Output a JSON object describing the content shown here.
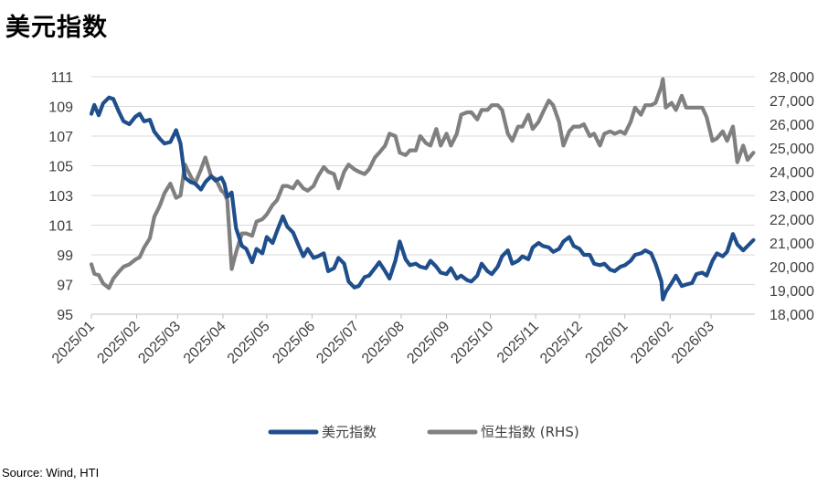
{
  "title": "美元指数",
  "source": "Source: Wind, HTI",
  "chart_data": {
    "type": "line",
    "x_tick_labels": [
      "2025/01",
      "2025/02",
      "2025/03",
      "2025/04",
      "2025/05",
      "2025/06",
      "2025/07",
      "2025/08",
      "2025/09",
      "2025/10",
      "2025/11",
      "2025/12",
      "2026/01",
      "2026/02",
      "2026/03"
    ],
    "left_axis": {
      "ylim": [
        95,
        111
      ],
      "ticks": [
        "111",
        "109",
        "107",
        "105",
        "103",
        "101",
        "99",
        "97",
        "95"
      ]
    },
    "right_axis": {
      "label_suffix": "(RHS)",
      "ylim": [
        18000,
        28000
      ],
      "ticks": [
        "28,000",
        "27,000",
        "26,000",
        "25,000",
        "24,000",
        "23,000",
        "22,000",
        "21,000",
        "20,000",
        "19,000",
        "18,000"
      ]
    },
    "grid": true,
    "legend_position": "bottom",
    "series": [
      {
        "name": "美元指数",
        "axis": "left",
        "color": "#1f4e8c",
        "values": [
          [
            "2025/01/01",
            108.5
          ],
          [
            "2025/01/03",
            109.1
          ],
          [
            "2025/01/06",
            108.4
          ],
          [
            "2025/01/09",
            109.2
          ],
          [
            "2025/01/13",
            109.6
          ],
          [
            "2025/01/16",
            109.5
          ],
          [
            "2025/01/20",
            108.6
          ],
          [
            "2025/01/23",
            108.0
          ],
          [
            "2025/01/27",
            107.8
          ],
          [
            "2025/01/31",
            108.3
          ],
          [
            "2025/02/03",
            108.5
          ],
          [
            "2025/02/06",
            108.0
          ],
          [
            "2025/02/10",
            108.1
          ],
          [
            "2025/02/13",
            107.3
          ],
          [
            "2025/02/17",
            106.8
          ],
          [
            "2025/02/20",
            106.5
          ],
          [
            "2025/02/24",
            106.6
          ],
          [
            "2025/02/28",
            107.4
          ],
          [
            "2025/03/03",
            106.5
          ],
          [
            "2025/03/06",
            104.2
          ],
          [
            "2025/03/10",
            103.9
          ],
          [
            "2025/03/13",
            103.8
          ],
          [
            "2025/03/17",
            103.4
          ],
          [
            "2025/03/20",
            103.9
          ],
          [
            "2025/03/24",
            104.3
          ],
          [
            "2025/03/27",
            104.0
          ],
          [
            "2025/03/31",
            104.2
          ],
          [
            "2025/04/02",
            103.8
          ],
          [
            "2025/04/04",
            102.9
          ],
          [
            "2025/04/07",
            103.2
          ],
          [
            "2025/04/10",
            100.8
          ],
          [
            "2025/04/14",
            99.6
          ],
          [
            "2025/04/17",
            99.4
          ],
          [
            "2025/04/21",
            98.5
          ],
          [
            "2025/04/24",
            99.4
          ],
          [
            "2025/04/28",
            99.1
          ],
          [
            "2025/05/01",
            100.2
          ],
          [
            "2025/05/05",
            99.8
          ],
          [
            "2025/05/08",
            100.6
          ],
          [
            "2025/05/12",
            101.6
          ],
          [
            "2025/05/15",
            100.9
          ],
          [
            "2025/05/19",
            100.5
          ],
          [
            "2025/05/22",
            99.8
          ],
          [
            "2025/05/26",
            98.9
          ],
          [
            "2025/05/29",
            99.4
          ],
          [
            "2025/06/02",
            98.8
          ],
          [
            "2025/06/05",
            98.9
          ],
          [
            "2025/06/09",
            99.1
          ],
          [
            "2025/06/12",
            97.9
          ],
          [
            "2025/06/16",
            98.1
          ],
          [
            "2025/06/19",
            98.8
          ],
          [
            "2025/06/23",
            98.4
          ],
          [
            "2025/06/26",
            97.2
          ],
          [
            "2025/06/30",
            96.8
          ],
          [
            "2025/07/03",
            96.9
          ],
          [
            "2025/07/07",
            97.5
          ],
          [
            "2025/07/10",
            97.6
          ],
          [
            "2025/07/14",
            98.1
          ],
          [
            "2025/07/17",
            98.5
          ],
          [
            "2025/07/21",
            97.9
          ],
          [
            "2025/07/24",
            97.4
          ],
          [
            "2025/07/28",
            98.6
          ],
          [
            "2025/07/31",
            99.9
          ],
          [
            "2025/08/04",
            98.7
          ],
          [
            "2025/08/07",
            98.3
          ],
          [
            "2025/08/11",
            98.4
          ],
          [
            "2025/08/14",
            98.2
          ],
          [
            "2025/08/18",
            98.1
          ],
          [
            "2025/08/21",
            98.6
          ],
          [
            "2025/08/25",
            98.2
          ],
          [
            "2025/08/28",
            97.8
          ],
          [
            "2025/09/01",
            97.7
          ],
          [
            "2025/09/04",
            98.1
          ],
          [
            "2025/09/08",
            97.4
          ],
          [
            "2025/09/11",
            97.6
          ],
          [
            "2025/09/15",
            97.3
          ],
          [
            "2025/09/18",
            97.2
          ],
          [
            "2025/09/22",
            97.6
          ],
          [
            "2025/09/25",
            98.4
          ],
          [
            "2025/09/29",
            97.9
          ],
          [
            "2025/10/02",
            97.7
          ],
          [
            "2025/10/06",
            98.2
          ],
          [
            "2025/10/09",
            98.9
          ],
          [
            "2025/10/13",
            99.3
          ],
          [
            "2025/10/16",
            98.4
          ],
          [
            "2025/10/20",
            98.6
          ],
          [
            "2025/10/23",
            98.9
          ],
          [
            "2025/10/27",
            98.7
          ],
          [
            "2025/10/30",
            99.5
          ],
          [
            "2025/11/03",
            99.8
          ],
          [
            "2025/11/06",
            99.6
          ],
          [
            "2025/11/10",
            99.5
          ],
          [
            "2025/11/13",
            99.2
          ],
          [
            "2025/11/17",
            99.4
          ],
          [
            "2025/11/20",
            99.9
          ],
          [
            "2025/11/24",
            100.2
          ],
          [
            "2025/11/27",
            99.6
          ],
          [
            "2025/12/01",
            99.4
          ],
          [
            "2025/12/04",
            99.0
          ],
          [
            "2025/12/08",
            99.0
          ],
          [
            "2025/12/11",
            98.4
          ],
          [
            "2025/12/15",
            98.3
          ],
          [
            "2025/12/18",
            98.4
          ],
          [
            "2025/12/22",
            98.0
          ],
          [
            "2025/12/25",
            97.9
          ],
          [
            "2025/12/29",
            98.2
          ],
          [
            "2026/01/01",
            98.3
          ],
          [
            "2026/01/05",
            98.6
          ],
          [
            "2026/01/08",
            99.0
          ],
          [
            "2026/01/12",
            99.1
          ],
          [
            "2026/01/15",
            99.3
          ],
          [
            "2026/01/19",
            99.1
          ],
          [
            "2026/01/22",
            98.4
          ],
          [
            "2026/01/26",
            97.2
          ],
          [
            "2026/01/27",
            96.0
          ],
          [
            "2026/01/29",
            96.5
          ],
          [
            "2026/02/02",
            97.1
          ],
          [
            "2026/02/05",
            97.6
          ],
          [
            "2026/02/09",
            96.9
          ],
          [
            "2026/02/12",
            97.0
          ],
          [
            "2026/02/16",
            97.1
          ],
          [
            "2026/02/19",
            97.7
          ],
          [
            "2026/02/23",
            97.8
          ],
          [
            "2026/02/26",
            97.6
          ],
          [
            "2026/03/02",
            98.6
          ],
          [
            "2026/03/05",
            99.1
          ],
          [
            "2026/03/09",
            98.9
          ],
          [
            "2026/03/12",
            99.2
          ],
          [
            "2026/03/16",
            100.4
          ],
          [
            "2026/03/19",
            99.7
          ],
          [
            "2026/03/23",
            99.3
          ],
          [
            "2026/03/26",
            99.6
          ],
          [
            "2026/03/30",
            100.0
          ]
        ]
      },
      {
        "name": "恒生指数",
        "axis": "right",
        "color": "#808080",
        "values": [
          [
            "2025/01/01",
            20100
          ],
          [
            "2025/01/03",
            19700
          ],
          [
            "2025/01/06",
            19650
          ],
          [
            "2025/01/09",
            19300
          ],
          [
            "2025/01/13",
            19100
          ],
          [
            "2025/01/16",
            19500
          ],
          [
            "2025/01/20",
            19800
          ],
          [
            "2025/01/23",
            20000
          ],
          [
            "2025/01/27",
            20100
          ],
          [
            "2025/01/31",
            20300
          ],
          [
            "2025/02/03",
            20400
          ],
          [
            "2025/02/06",
            20800
          ],
          [
            "2025/02/10",
            21200
          ],
          [
            "2025/02/13",
            22100
          ],
          [
            "2025/02/17",
            22600
          ],
          [
            "2025/02/20",
            23100
          ],
          [
            "2025/02/24",
            23500
          ],
          [
            "2025/02/28",
            22900
          ],
          [
            "2025/03/03",
            23000
          ],
          [
            "2025/03/06",
            24300
          ],
          [
            "2025/03/10",
            23800
          ],
          [
            "2025/03/13",
            23500
          ],
          [
            "2025/03/17",
            24100
          ],
          [
            "2025/03/20",
            24600
          ],
          [
            "2025/03/24",
            23800
          ],
          [
            "2025/03/27",
            23700
          ],
          [
            "2025/03/31",
            23200
          ],
          [
            "2025/04/02",
            23100
          ],
          [
            "2025/04/04",
            22800
          ],
          [
            "2025/04/07",
            19900
          ],
          [
            "2025/04/10",
            20600
          ],
          [
            "2025/04/14",
            21400
          ],
          [
            "2025/04/17",
            21400
          ],
          [
            "2025/04/21",
            21300
          ],
          [
            "2025/04/24",
            21900
          ],
          [
            "2025/04/28",
            22000
          ],
          [
            "2025/05/01",
            22200
          ],
          [
            "2025/05/05",
            22600
          ],
          [
            "2025/05/08",
            22800
          ],
          [
            "2025/05/12",
            23400
          ],
          [
            "2025/05/15",
            23400
          ],
          [
            "2025/05/19",
            23300
          ],
          [
            "2025/05/22",
            23600
          ],
          [
            "2025/05/26",
            23300
          ],
          [
            "2025/05/29",
            23200
          ],
          [
            "2025/06/02",
            23400
          ],
          [
            "2025/06/05",
            23800
          ],
          [
            "2025/06/09",
            24200
          ],
          [
            "2025/06/12",
            24000
          ],
          [
            "2025/06/16",
            23900
          ],
          [
            "2025/06/19",
            23300
          ],
          [
            "2025/06/23",
            24000
          ],
          [
            "2025/06/26",
            24300
          ],
          [
            "2025/06/30",
            24100
          ],
          [
            "2025/07/03",
            24000
          ],
          [
            "2025/07/07",
            23900
          ],
          [
            "2025/07/10",
            24100
          ],
          [
            "2025/07/14",
            24600
          ],
          [
            "2025/07/17",
            24800
          ],
          [
            "2025/07/21",
            25100
          ],
          [
            "2025/07/24",
            25600
          ],
          [
            "2025/07/28",
            25500
          ],
          [
            "2025/07/31",
            24800
          ],
          [
            "2025/08/04",
            24700
          ],
          [
            "2025/08/07",
            24900
          ],
          [
            "2025/08/11",
            24900
          ],
          [
            "2025/08/14",
            25500
          ],
          [
            "2025/08/18",
            25200
          ],
          [
            "2025/08/21",
            25100
          ],
          [
            "2025/08/25",
            25800
          ],
          [
            "2025/08/28",
            25100
          ],
          [
            "2025/09/01",
            25600
          ],
          [
            "2025/09/04",
            25100
          ],
          [
            "2025/09/08",
            25600
          ],
          [
            "2025/09/11",
            26400
          ],
          [
            "2025/09/15",
            26500
          ],
          [
            "2025/09/18",
            26500
          ],
          [
            "2025/09/22",
            26200
          ],
          [
            "2025/09/25",
            26600
          ],
          [
            "2025/09/29",
            26600
          ],
          [
            "2025/10/02",
            26800
          ],
          [
            "2025/10/06",
            26800
          ],
          [
            "2025/10/09",
            26600
          ],
          [
            "2025/10/13",
            25600
          ],
          [
            "2025/10/16",
            25300
          ],
          [
            "2025/10/20",
            25900
          ],
          [
            "2025/10/23",
            25900
          ],
          [
            "2025/10/27",
            26400
          ],
          [
            "2025/10/30",
            25800
          ],
          [
            "2025/11/03",
            26100
          ],
          [
            "2025/11/06",
            26500
          ],
          [
            "2025/11/10",
            27000
          ],
          [
            "2025/11/13",
            26800
          ],
          [
            "2025/11/17",
            26100
          ],
          [
            "2025/11/20",
            25100
          ],
          [
            "2025/11/24",
            25700
          ],
          [
            "2025/11/27",
            25900
          ],
          [
            "2025/12/01",
            25900
          ],
          [
            "2025/12/04",
            26000
          ],
          [
            "2025/12/08",
            25500
          ],
          [
            "2025/12/11",
            25600
          ],
          [
            "2025/12/15",
            25100
          ],
          [
            "2025/12/18",
            25600
          ],
          [
            "2025/12/22",
            25700
          ],
          [
            "2025/12/25",
            25600
          ],
          [
            "2025/12/29",
            25700
          ],
          [
            "2026/01/01",
            25600
          ],
          [
            "2026/01/05",
            26100
          ],
          [
            "2026/01/08",
            26700
          ],
          [
            "2026/01/12",
            26400
          ],
          [
            "2026/01/15",
            26800
          ],
          [
            "2026/01/19",
            26800
          ],
          [
            "2026/01/22",
            26900
          ],
          [
            "2026/01/26",
            27600
          ],
          [
            "2026/01/27",
            27900
          ],
          [
            "2026/01/29",
            26700
          ],
          [
            "2026/02/02",
            26900
          ],
          [
            "2026/02/05",
            26600
          ],
          [
            "2026/02/09",
            27200
          ],
          [
            "2026/02/12",
            26700
          ],
          [
            "2026/02/16",
            26700
          ],
          [
            "2026/02/19",
            26700
          ],
          [
            "2026/02/23",
            26700
          ],
          [
            "2026/02/26",
            26300
          ],
          [
            "2026/03/02",
            25300
          ],
          [
            "2026/03/05",
            25400
          ],
          [
            "2026/03/09",
            25700
          ],
          [
            "2026/03/12",
            25300
          ],
          [
            "2026/03/16",
            25900
          ],
          [
            "2026/03/19",
            24400
          ],
          [
            "2026/03/23",
            25100
          ],
          [
            "2026/03/26",
            24500
          ],
          [
            "2026/03/30",
            24800
          ]
        ]
      }
    ]
  },
  "legend": [
    "美元指数",
    "恒生指数 (RHS)"
  ]
}
